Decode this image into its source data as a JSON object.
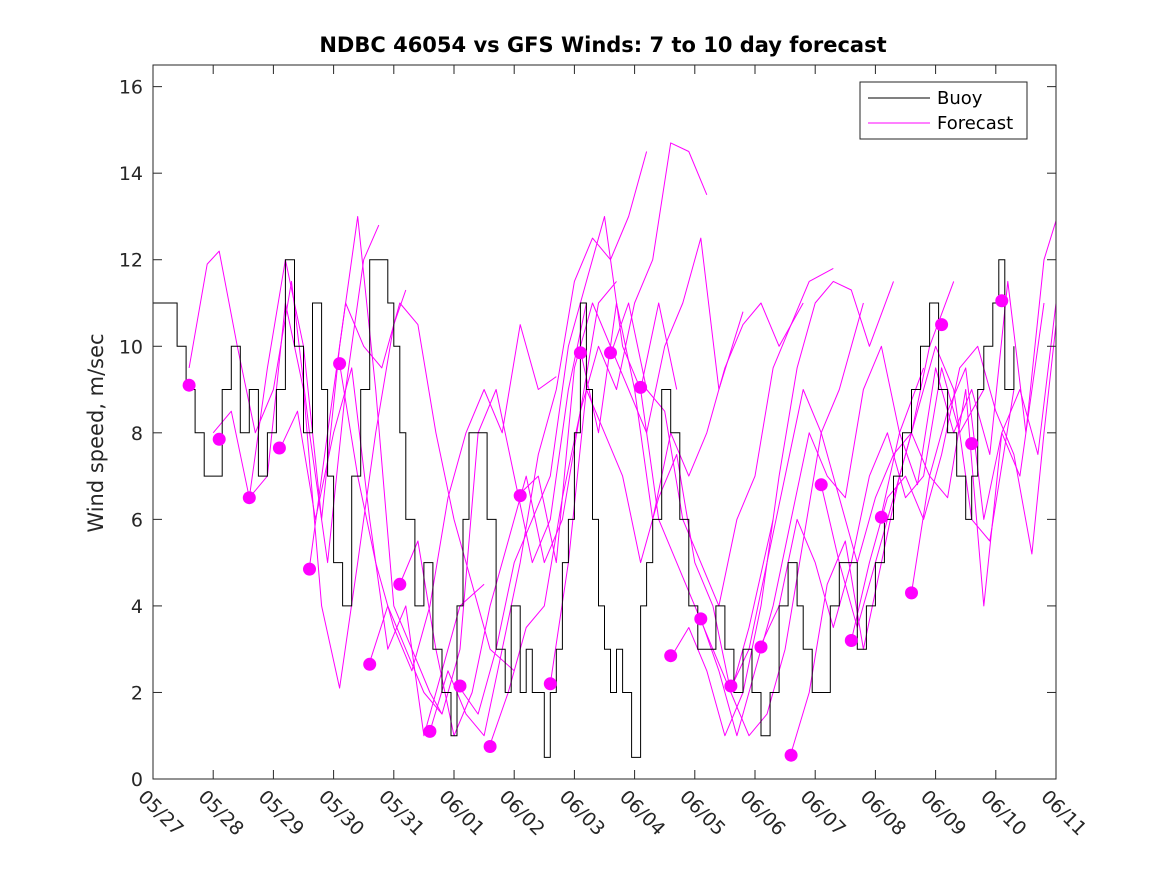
{
  "chart_data": {
    "type": "line",
    "title": "NDBC 46054 vs GFS Winds: 7 to 10 day forecast",
    "ylabel": "Wind speed, m/sec",
    "xlabel": "",
    "x_tick_labels": [
      "05/27",
      "05/28",
      "05/29",
      "05/30",
      "05/31",
      "06/01",
      "06/02",
      "06/03",
      "06/04",
      "06/05",
      "06/06",
      "06/07",
      "06/08",
      "06/09",
      "06/10",
      "06/11"
    ],
    "xlim_days": [
      0,
      15
    ],
    "ylim": [
      0,
      16.5
    ],
    "y_ticks": [
      0,
      2,
      4,
      6,
      8,
      10,
      12,
      14,
      16
    ],
    "grid": false,
    "legend_position": "top-right",
    "colors": {
      "buoy": "#000000",
      "forecast": "#ff00ff"
    },
    "legend": [
      {
        "label": "Buoy",
        "color": "#000000"
      },
      {
        "label": "Forecast",
        "color": "#ff00ff"
      }
    ],
    "buoy": {
      "name": "Buoy",
      "x_days": [
        0,
        0.2,
        0.4,
        0.55,
        0.7,
        0.85,
        1.0,
        1.15,
        1.3,
        1.45,
        1.6,
        1.75,
        1.9,
        2.05,
        2.2,
        2.35,
        2.5,
        2.65,
        2.8,
        2.9,
        3.0,
        3.15,
        3.3,
        3.45,
        3.6,
        3.75,
        3.9,
        4.0,
        4.1,
        4.2,
        4.35,
        4.5,
        4.65,
        4.8,
        4.95,
        5.05,
        5.15,
        5.25,
        5.4,
        5.55,
        5.7,
        5.85,
        5.95,
        6.1,
        6.2,
        6.3,
        6.4,
        6.5,
        6.6,
        6.7,
        6.8,
        6.9,
        7.0,
        7.1,
        7.2,
        7.3,
        7.4,
        7.5,
        7.6,
        7.7,
        7.8,
        7.95,
        8.1,
        8.2,
        8.3,
        8.45,
        8.6,
        8.75,
        8.9,
        9.05,
        9.2,
        9.35,
        9.5,
        9.65,
        9.8,
        9.95,
        10.1,
        10.25,
        10.4,
        10.55,
        10.7,
        10.8,
        10.95,
        11.1,
        11.25,
        11.4,
        11.55,
        11.7,
        11.85,
        12.0,
        12.15,
        12.3,
        12.45,
        12.6,
        12.75,
        12.9,
        13.05,
        13.2,
        13.35,
        13.5,
        13.6,
        13.7,
        13.8,
        13.95,
        14.05,
        14.15,
        14.3
      ],
      "values": [
        11,
        11,
        10,
        9,
        8,
        7,
        7,
        9,
        10,
        8,
        9,
        7,
        8,
        9,
        12,
        10,
        8,
        11,
        9,
        7,
        5,
        4,
        7,
        9,
        12,
        12,
        11,
        10,
        8,
        6,
        4,
        5,
        3,
        2,
        1,
        4,
        6,
        8,
        8,
        6,
        3,
        2,
        4,
        2,
        3,
        2,
        2,
        0.5,
        2,
        3,
        5,
        6,
        8,
        11,
        9,
        6,
        4,
        3,
        2,
        3,
        2,
        0.5,
        4,
        5,
        6,
        9,
        8,
        6,
        4,
        3,
        3,
        4,
        3,
        2,
        3,
        2,
        1,
        2,
        4,
        5,
        4,
        3,
        2,
        2,
        4,
        5,
        5,
        3,
        4,
        5,
        6,
        7,
        8,
        9,
        10,
        11,
        9,
        8,
        7,
        6,
        7,
        9,
        10,
        11,
        12,
        9,
        10
      ]
    },
    "forecast_runs": [
      {
        "x_days": [
          0.6,
          0.9,
          1.1,
          1.4,
          1.7,
          2.0,
          2.3,
          2.6,
          2.9,
          3.2,
          3.5,
          3.75
        ],
        "values": [
          9.5,
          11.9,
          12.2,
          10.0,
          8.0,
          9.0,
          11.5,
          8.0,
          5.0,
          9.0,
          12.0,
          12.8
        ]
      },
      {
        "x_days": [
          1.0,
          1.3,
          1.6,
          1.9,
          2.2,
          2.5,
          2.8,
          3.1,
          3.4,
          3.7,
          4.0,
          4.2
        ],
        "values": [
          8.0,
          8.5,
          6.5,
          7.0,
          11.0,
          9.0,
          4.0,
          2.1,
          5.0,
          8.0,
          10.5,
          11.3
        ]
      },
      {
        "x_days": [
          1.6,
          1.9,
          2.2,
          2.5,
          2.8,
          3.1,
          3.4,
          3.7,
          4.0,
          4.3,
          4.6,
          4.8
        ],
        "values": [
          6.5,
          9.5,
          12.0,
          10.0,
          6.0,
          10.0,
          13.0,
          9.0,
          4.0,
          3.0,
          2.0,
          1.5
        ]
      },
      {
        "x_days": [
          2.1,
          2.4,
          2.7,
          3.0,
          3.3,
          3.6,
          3.9,
          4.2,
          4.5,
          4.8,
          5.1,
          5.5
        ],
        "values": [
          7.6,
          8.5,
          6.0,
          8.0,
          9.5,
          6.0,
          3.0,
          4.0,
          1.0,
          2.5,
          4.0,
          4.5
        ]
      },
      {
        "x_days": [
          2.6,
          2.9,
          3.2,
          3.5,
          3.8,
          4.1,
          4.4,
          4.7,
          5.0,
          5.3,
          5.6,
          6.0
        ],
        "values": [
          4.9,
          8.0,
          11.0,
          10.0,
          9.5,
          11.0,
          10.5,
          8.0,
          6.0,
          4.5,
          3.0,
          2.5
        ]
      },
      {
        "x_days": [
          3.1,
          3.4,
          3.7,
          4.0,
          4.3,
          4.6,
          4.9,
          5.2,
          5.5,
          5.8,
          6.1,
          6.4,
          6.7
        ],
        "values": [
          9.6,
          7.0,
          5.0,
          3.5,
          2.5,
          4.0,
          6.5,
          8.0,
          9.0,
          8.0,
          10.5,
          9.0,
          9.3
        ]
      },
      {
        "x_days": [
          3.6,
          3.9,
          4.2,
          4.5,
          4.8,
          5.1,
          5.4,
          5.7,
          6.0,
          6.3,
          6.6,
          6.9,
          7.2
        ],
        "values": [
          2.7,
          4.0,
          3.0,
          2.0,
          1.5,
          3.0,
          8.0,
          9.0,
          7.0,
          5.0,
          6.0,
          9.0,
          11.0
        ]
      },
      {
        "x_days": [
          4.1,
          4.4,
          4.7,
          5.0,
          5.3,
          5.6,
          5.9,
          6.2,
          6.5,
          6.8,
          7.1,
          7.4,
          7.7
        ],
        "values": [
          4.5,
          5.5,
          3.0,
          1.0,
          2.0,
          4.0,
          5.5,
          7.0,
          5.0,
          6.0,
          8.5,
          11.0,
          11.5
        ]
      },
      {
        "x_days": [
          4.6,
          4.9,
          5.2,
          5.5,
          5.8,
          6.1,
          6.4,
          6.7,
          7.0,
          7.3,
          7.6,
          7.9,
          8.2
        ],
        "values": [
          1.1,
          2.5,
          1.5,
          1.0,
          3.0,
          5.0,
          7.5,
          9.0,
          11.5,
          12.5,
          12.0,
          13.0,
          14.5
        ]
      },
      {
        "x_days": [
          5.1,
          5.4,
          5.7,
          6.0,
          6.3,
          6.6,
          6.9,
          7.2,
          7.5,
          7.8,
          8.1,
          8.4,
          8.7
        ],
        "values": [
          2.1,
          1.5,
          3.0,
          5.0,
          6.0,
          7.0,
          10.0,
          11.5,
          13.0,
          10.0,
          9.0,
          11.0,
          9.0
        ]
      },
      {
        "x_days": [
          5.6,
          5.9,
          6.2,
          6.5,
          6.8,
          7.1,
          7.4,
          7.7,
          8.0,
          8.3,
          8.6,
          8.9,
          9.2
        ],
        "values": [
          0.8,
          2.0,
          3.5,
          4.0,
          6.5,
          8.5,
          10.0,
          9.0,
          11.0,
          12.0,
          14.7,
          14.5,
          13.5
        ]
      },
      {
        "x_days": [
          6.1,
          6.4,
          6.7,
          7.0,
          7.3,
          7.6,
          7.9,
          8.2,
          8.5,
          8.8,
          9.1,
          9.4,
          9.8
        ],
        "values": [
          6.6,
          7.0,
          5.0,
          9.5,
          11.0,
          10.0,
          9.0,
          8.0,
          10.0,
          11.0,
          12.5,
          9.0,
          10.8
        ]
      },
      {
        "x_days": [
          6.6,
          6.9,
          7.2,
          7.5,
          7.8,
          8.1,
          8.4,
          8.7,
          9.0,
          9.3,
          9.6,
          9.9,
          10.3
        ],
        "values": [
          2.2,
          5.0,
          9.0,
          8.0,
          7.0,
          5.0,
          6.5,
          7.5,
          5.0,
          4.0,
          2.0,
          3.5,
          6.0
        ]
      },
      {
        "x_days": [
          7.1,
          7.4,
          7.7,
          8.0,
          8.3,
          8.6,
          8.9,
          9.2,
          9.5,
          9.8,
          10.1,
          10.4,
          10.8
        ],
        "values": [
          9.9,
          8.0,
          11.0,
          9.0,
          6.0,
          8.0,
          7.0,
          8.0,
          9.5,
          10.5,
          11.0,
          10.0,
          11.0
        ]
      },
      {
        "x_days": [
          7.6,
          7.9,
          8.2,
          8.5,
          8.8,
          9.1,
          9.4,
          9.7,
          10.0,
          10.3,
          10.6,
          10.9,
          11.3
        ],
        "values": [
          9.8,
          11.0,
          9.0,
          8.5,
          6.0,
          5.0,
          4.0,
          6.0,
          7.0,
          9.5,
          10.5,
          11.5,
          11.8
        ]
      },
      {
        "x_days": [
          8.1,
          8.4,
          8.7,
          9.0,
          9.3,
          9.6,
          9.9,
          10.2,
          10.5,
          10.8,
          11.1,
          11.4,
          11.8
        ],
        "values": [
          9.0,
          6.0,
          5.0,
          4.0,
          3.0,
          2.0,
          1.0,
          1.5,
          3.0,
          5.5,
          8.0,
          9.0,
          11.0
        ]
      },
      {
        "x_days": [
          8.6,
          8.9,
          9.2,
          9.5,
          9.8,
          10.1,
          10.4,
          10.7,
          11.0,
          11.3,
          11.6,
          11.9,
          12.3
        ],
        "values": [
          2.8,
          3.5,
          2.5,
          1.0,
          2.0,
          4.0,
          7.0,
          9.5,
          11.0,
          11.5,
          11.3,
          10.0,
          11.5
        ]
      },
      {
        "x_days": [
          9.1,
          9.4,
          9.7,
          10.0,
          10.3,
          10.6,
          10.9,
          11.2,
          11.5,
          11.8,
          12.1,
          12.4,
          12.8
        ],
        "values": [
          3.7,
          2.5,
          1.0,
          2.5,
          4.0,
          6.0,
          8.0,
          7.0,
          6.5,
          9.0,
          10.0,
          8.0,
          9.5
        ]
      },
      {
        "x_days": [
          9.6,
          9.9,
          10.2,
          10.5,
          10.8,
          11.1,
          11.4,
          11.7,
          12.0,
          12.3,
          12.6,
          12.9,
          13.3
        ],
        "values": [
          2.1,
          3.0,
          5.0,
          7.0,
          9.0,
          8.0,
          6.5,
          5.0,
          6.5,
          7.5,
          8.0,
          10.0,
          11.5
        ]
      },
      {
        "x_days": [
          10.1,
          10.4,
          10.7,
          11.0,
          11.3,
          11.6,
          11.9,
          12.2,
          12.5,
          12.8,
          13.1,
          13.4,
          13.8
        ],
        "values": [
          3.1,
          4.0,
          6.0,
          5.0,
          3.5,
          5.0,
          7.0,
          8.0,
          6.5,
          7.0,
          9.5,
          8.0,
          9.0
        ]
      },
      {
        "x_days": [
          10.6,
          10.9,
          11.2,
          11.5,
          11.8,
          12.1,
          12.4,
          12.7,
          13.0,
          13.3,
          13.6,
          13.9,
          14.3
        ],
        "values": [
          0.6,
          2.0,
          4.5,
          5.5,
          3.0,
          5.0,
          7.0,
          8.5,
          10.0,
          9.0,
          6.0,
          5.5,
          9.0
        ]
      },
      {
        "x_days": [
          11.1,
          11.4,
          11.7,
          12.0,
          12.3,
          12.6,
          12.9,
          13.2,
          13.5,
          13.8,
          14.1,
          14.4,
          14.8
        ],
        "values": [
          6.8,
          5.0,
          3.5,
          5.0,
          6.5,
          8.0,
          7.0,
          8.5,
          9.5,
          6.0,
          8.0,
          7.0,
          11.0
        ]
      },
      {
        "x_days": [
          11.6,
          11.9,
          12.2,
          12.5,
          12.8,
          13.1,
          13.4,
          13.7,
          14.0,
          14.3,
          14.6,
          14.8,
          15.0
        ],
        "values": [
          3.2,
          5.0,
          6.5,
          7.0,
          6.0,
          7.5,
          9.5,
          10.0,
          8.5,
          7.5,
          5.2,
          8.0,
          10.5
        ]
      },
      {
        "x_days": [
          12.1,
          12.4,
          12.7,
          13.0,
          13.3,
          13.6,
          13.9,
          14.2,
          14.5,
          14.8,
          15.0
        ],
        "values": [
          6.1,
          8.0,
          6.8,
          9.5,
          8.0,
          9.0,
          7.5,
          11.5,
          8.0,
          12.0,
          12.9
        ]
      },
      {
        "x_days": [
          12.6,
          12.9,
          13.2,
          13.5,
          13.8,
          14.1,
          14.4,
          14.7,
          15.0
        ],
        "values": [
          4.3,
          7.0,
          6.5,
          9.0,
          4.0,
          8.0,
          9.0,
          7.5,
          11.0
        ]
      }
    ],
    "forecast_points": {
      "x_days": [
        0.6,
        1.1,
        1.6,
        2.1,
        2.6,
        3.1,
        3.6,
        4.1,
        4.6,
        5.1,
        5.6,
        6.1,
        6.6,
        7.1,
        7.6,
        8.1,
        8.6,
        9.1,
        9.6,
        10.1,
        10.6,
        11.1,
        11.6,
        12.1,
        12.6,
        13.1,
        13.6,
        14.1
      ],
      "values": [
        9.1,
        7.85,
        6.5,
        7.65,
        4.85,
        9.6,
        2.65,
        4.5,
        1.1,
        2.15,
        0.75,
        6.55,
        2.2,
        9.85,
        9.85,
        9.05,
        2.85,
        3.7,
        2.15,
        3.05,
        0.55,
        6.8,
        3.2,
        6.05,
        4.3,
        10.5,
        7.75,
        11.05
      ]
    }
  }
}
